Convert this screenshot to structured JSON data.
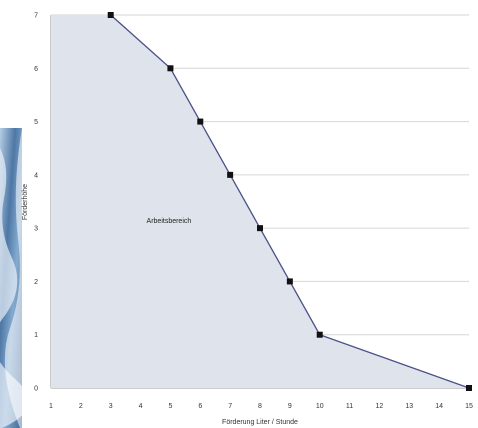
{
  "chart_data": {
    "type": "area",
    "title": "",
    "xlabel": "Förderung Liter / Stunde",
    "ylabel": "Förderhöhe",
    "x_ticks": [
      "1",
      "2",
      "3",
      "4",
      "5",
      "6",
      "7",
      "8",
      "9",
      "10",
      "11",
      "12",
      "13",
      "14",
      "15"
    ],
    "y_ticks": [
      "0",
      "1",
      "2",
      "3",
      "4",
      "5",
      "6",
      "7"
    ],
    "xlim": [
      1,
      15
    ],
    "ylim": [
      0,
      7
    ],
    "grid": {
      "horizontal": true,
      "vertical": false
    },
    "legend": "none",
    "series": [
      {
        "x": [
          3,
          5,
          6,
          7,
          8,
          9,
          10,
          15
        ],
        "y": [
          7,
          6,
          5,
          4,
          3,
          2,
          1,
          0
        ]
      }
    ],
    "annotations": [
      {
        "text": "Arbeitsbereich",
        "x": 4.2,
        "y": 3.1
      }
    ],
    "colors": {
      "line": "#4a4f86",
      "fill": "#dfe3ec",
      "marker": "#111111",
      "grid": "#d6d6d6",
      "axis": "#9a9a9a"
    }
  }
}
